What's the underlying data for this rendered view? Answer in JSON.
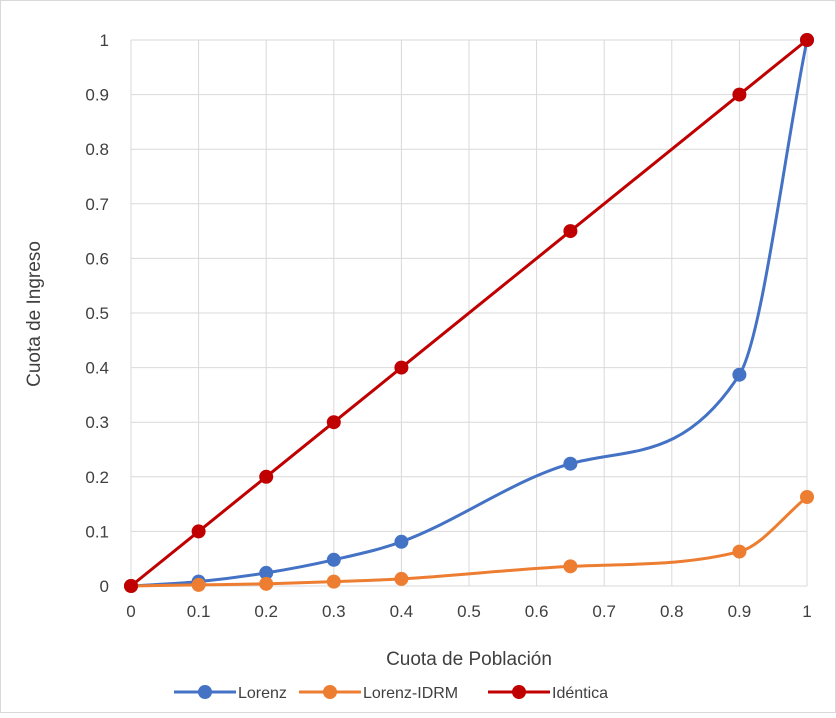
{
  "chart_data": {
    "type": "line",
    "title": "",
    "xlabel": "Cuota de Población",
    "ylabel": "Cuota de Ingreso",
    "xlim": [
      0,
      1
    ],
    "ylim": [
      0,
      1
    ],
    "x_ticks": [
      "0",
      "0.1",
      "0.2",
      "0.3",
      "0.4",
      "0.5",
      "0.6",
      "0.7",
      "0.8",
      "0.9",
      "1"
    ],
    "y_ticks": [
      "0",
      "0.1",
      "0.2",
      "0.3",
      "0.4",
      "0.5",
      "0.6",
      "0.7",
      "0.8",
      "0.9",
      "1"
    ],
    "grid": true,
    "legend_position": "bottom",
    "series": [
      {
        "name": "Lorenz",
        "color": "#4472c4",
        "smooth": true,
        "x": [
          0,
          0.1,
          0.2,
          0.3,
          0.4,
          0.65,
          0.9,
          1
        ],
        "y": [
          0,
          0.008,
          0.024,
          0.048,
          0.081,
          0.224,
          0.387,
          1
        ]
      },
      {
        "name": "Lorenz-IDRM",
        "color": "#ed7d31",
        "smooth": true,
        "x": [
          0,
          0.1,
          0.2,
          0.3,
          0.4,
          0.65,
          0.9,
          1
        ],
        "y": [
          0,
          0.002,
          0.004,
          0.008,
          0.013,
          0.036,
          0.063,
          0.163
        ]
      },
      {
        "name": "Idéntica",
        "color": "#c00000",
        "smooth": false,
        "x": [
          0,
          0.1,
          0.2,
          0.3,
          0.4,
          0.65,
          0.9,
          1
        ],
        "y": [
          0,
          0.1,
          0.2,
          0.3,
          0.4,
          0.65,
          0.9,
          1
        ]
      }
    ]
  }
}
